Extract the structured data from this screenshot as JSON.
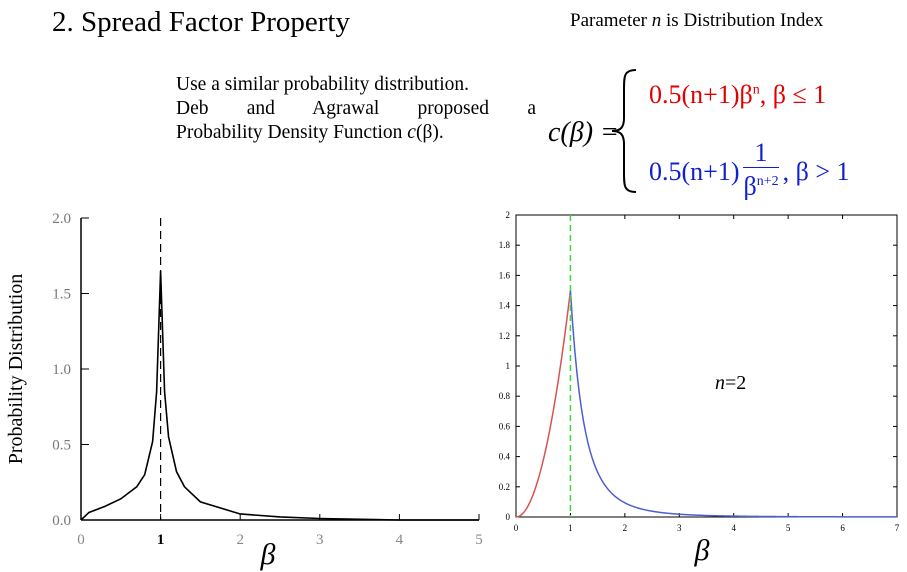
{
  "header": {
    "title": "2. Spread Factor Property",
    "param_note_a": "Parameter ",
    "param_note_n": "n",
    "param_note_b": " is Distribution Index"
  },
  "description": {
    "line1": "Use a similar probability distribution.",
    "line2": "Deb and Agrawal proposed a",
    "line3a": "Probability Density Function ",
    "line3b": "c",
    "line3c": "(β)."
  },
  "equation": {
    "lhs": "c(β) =",
    "case1_expr": "0.5(n+1)β",
    "case1_sup": "n",
    "case1_cond": ",    β ≤ 1",
    "case2_pre": "0.5(n+1)",
    "case2_num": "1",
    "case2_den": "β",
    "case2_den_sup": "n+2",
    "case2_cond": ", β > 1",
    "color_case1": "#e00000",
    "color_case2": "#1020d0"
  },
  "chart_data": [
    {
      "type": "line",
      "title": "",
      "ylabel": "Probability Distribution",
      "xlabel": "β",
      "xlim": [
        0,
        5
      ],
      "ylim": [
        0,
        2
      ],
      "x_ticks": [
        "0",
        "1",
        "2",
        "3",
        "4",
        "5"
      ],
      "y_ticks": [
        "0.0",
        "0.5",
        "1.0",
        "1.5",
        "2.0"
      ],
      "series": [
        {
          "x": [
            0,
            0.1,
            0.3,
            0.5,
            0.7,
            0.8,
            0.9,
            0.95,
            1.0,
            1.05,
            1.1,
            1.2,
            1.3,
            1.5,
            2.0,
            2.5,
            3.0,
            4.0,
            5.0
          ],
          "y": [
            0.0,
            0.05,
            0.09,
            0.14,
            0.22,
            0.3,
            0.52,
            0.85,
            1.65,
            0.85,
            0.55,
            0.32,
            0.22,
            0.12,
            0.04,
            0.02,
            0.01,
            0.0,
            0.0
          ]
        }
      ],
      "vline": 1,
      "grid": false,
      "color": "#000000"
    },
    {
      "type": "line",
      "title": "",
      "xlabel": "β",
      "xlim": [
        0,
        7
      ],
      "ylim": [
        0,
        2
      ],
      "x_ticks": [
        "0",
        "1",
        "2",
        "3",
        "4",
        "5",
        "6",
        "7"
      ],
      "y_ticks": [
        "0",
        "0.2",
        "0.4",
        "0.6",
        "0.8",
        "1",
        "1.2",
        "1.4",
        "1.6",
        "1.8",
        "2"
      ],
      "annotation": "n=2",
      "n": 2,
      "series": [
        {
          "segment": "beta<=1",
          "color": "#d9534f"
        },
        {
          "segment": "beta>1",
          "color": "#4a5fd0"
        }
      ],
      "vline": 1,
      "vline_color": "#33dd33",
      "grid": false
    }
  ]
}
